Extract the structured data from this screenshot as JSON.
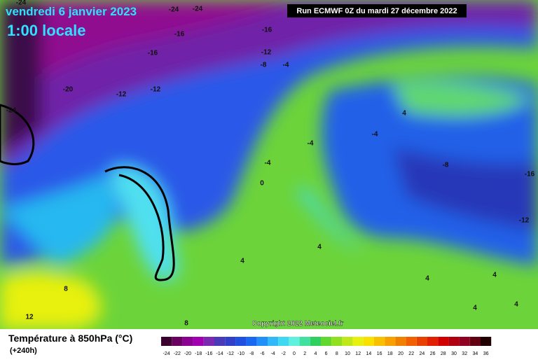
{
  "header": {
    "date": "vendredi 6 janvier 2023",
    "time": "1:00 locale",
    "run": "Run ECMWF 0Z du mardi 27 décembre 2022"
  },
  "copyright": "Copyright 2022 Meteociel.fr",
  "contour_labels": [
    "-24",
    "-24",
    "-24",
    "-16",
    "-16",
    "-16",
    "-12",
    "-8",
    "-4",
    "-20",
    "-12",
    "-12",
    "-24",
    "4",
    "-4",
    "-4",
    "-4",
    "-8",
    "-16",
    "0",
    "-12",
    "4",
    "4",
    "4",
    "4",
    "8",
    "4",
    "4",
    "12",
    "8"
  ],
  "legend": {
    "title": "Température à 850hPa (°C)",
    "subtitle": "(+240h)",
    "ticks": [
      -24,
      -22,
      -20,
      -18,
      -16,
      -14,
      -12,
      -10,
      -8,
      -6,
      -4,
      -2,
      0,
      2,
      4,
      6,
      8,
      10,
      12,
      14,
      16,
      18,
      20,
      22,
      24,
      26,
      28,
      30,
      32,
      34,
      36
    ],
    "colors": [
      "#3a0030",
      "#6a0060",
      "#8a0090",
      "#a000b0",
      "#7a2ab0",
      "#4a3ab8",
      "#3040c8",
      "#2050e0",
      "#1868f0",
      "#2090f8",
      "#30b8f8",
      "#40d8f0",
      "#60f0e0",
      "#40e0a0",
      "#30d060",
      "#60d830",
      "#90e020",
      "#c0e818",
      "#e8f010",
      "#f8e000",
      "#f8c000",
      "#f8a000",
      "#f08000",
      "#f06000",
      "#e84000",
      "#e02000",
      "#d00000",
      "#b00010",
      "#900020",
      "#600010",
      "#200000"
    ]
  }
}
